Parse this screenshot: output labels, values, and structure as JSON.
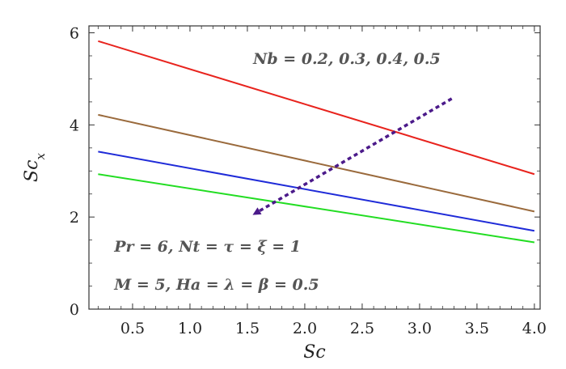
{
  "chart_data": {
    "type": "line",
    "xlabel": "Sc",
    "ylabel": "Sc",
    "ylabel_sub": "x",
    "xlim": [
      0.12,
      4.05
    ],
    "ylim": [
      0,
      6.15
    ],
    "xticks": [
      0.5,
      1.0,
      1.5,
      2.0,
      2.5,
      3.0,
      3.5,
      4.0
    ],
    "xtick_labels": [
      "0.5",
      "1.0",
      "1.5",
      "2.0",
      "2.5",
      "3.0",
      "3.5",
      "4.0"
    ],
    "yticks": [
      0,
      2,
      4,
      6
    ],
    "ytick_labels": [
      "0",
      "2",
      "4",
      "6"
    ],
    "grid": false,
    "series": [
      {
        "color": "#e8231d",
        "x": [
          0.2,
          4.0
        ],
        "y": [
          5.82,
          2.93
        ]
      },
      {
        "color": "#9a6a3c",
        "x": [
          0.2,
          4.0
        ],
        "y": [
          4.22,
          2.12
        ]
      },
      {
        "color": "#1f2bd8",
        "x": [
          0.2,
          4.0
        ],
        "y": [
          3.42,
          1.7
        ]
      },
      {
        "color": "#22dd22",
        "x": [
          0.2,
          4.0
        ],
        "y": [
          2.93,
          1.45
        ]
      }
    ],
    "arrow": {
      "color": "#4b1a8a",
      "from": [
        3.28,
        4.57
      ],
      "to": [
        1.57,
        2.08
      ]
    },
    "annotations": [
      {
        "text": "Nb = 0.2,  0.3,  0.4,  0.5",
        "x": 1.55,
        "y": 5.32
      },
      {
        "text": "Pr = 6,  Nt = τ = ξ = 1",
        "x": 0.34,
        "y": 1.25
      },
      {
        "text": "M = 5,  Ha = λ = β = 0.5",
        "x": 0.34,
        "y": 0.42
      }
    ]
  }
}
